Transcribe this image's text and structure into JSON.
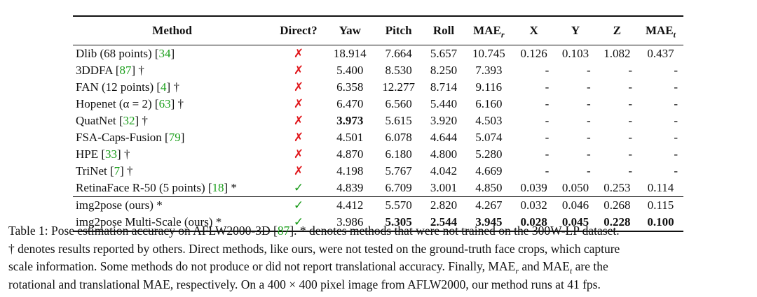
{
  "table": {
    "headers": {
      "method": "Method",
      "direct": "Direct?",
      "yaw": "Yaw",
      "pitch": "Pitch",
      "roll": "Roll",
      "mae_r": "MAE",
      "mae_r_sub": "r",
      "x": "X",
      "y": "Y",
      "z": "Z",
      "mae_t": "MAE",
      "mae_t_sub": "t"
    },
    "rows": [
      {
        "pre": "Dlib (68 points) [",
        "cite": "34",
        "post": "]",
        "direct": "✗",
        "yaw": "18.914",
        "pitch": "7.664",
        "roll": "5.657",
        "mae_r": "10.745",
        "x": "0.126",
        "y": "0.103",
        "z": "1.082",
        "mae_t": "0.437"
      },
      {
        "pre": "3DDFA [",
        "cite": "87",
        "post": "] †",
        "direct": "✗",
        "yaw": "5.400",
        "pitch": "8.530",
        "roll": "8.250",
        "mae_r": "7.393",
        "x": "-",
        "y": "-",
        "z": "-",
        "mae_t": "-"
      },
      {
        "pre": "FAN (12 points) [",
        "cite": "4",
        "post": "] †",
        "direct": "✗",
        "yaw": "6.358",
        "pitch": "12.277",
        "roll": "8.714",
        "mae_r": "9.116",
        "x": "-",
        "y": "-",
        "z": "-",
        "mae_t": "-"
      },
      {
        "pre": "Hopenet (α = 2) [",
        "cite": "63",
        "post": "] †",
        "direct": "✗",
        "yaw": "6.470",
        "pitch": "6.560",
        "roll": "5.440",
        "mae_r": "6.160",
        "x": "-",
        "y": "-",
        "z": "-",
        "mae_t": "-"
      },
      {
        "pre": "QuatNet [",
        "cite": "32",
        "post": "] †",
        "direct": "✗",
        "yaw": "3.973",
        "pitch": "5.615",
        "roll": "3.920",
        "mae_r": "4.503",
        "x": "-",
        "y": "-",
        "z": "-",
        "mae_t": "-"
      },
      {
        "pre": "FSA-Caps-Fusion [",
        "cite": "79",
        "post": "]",
        "direct": "✗",
        "yaw": "4.501",
        "pitch": "6.078",
        "roll": "4.644",
        "mae_r": "5.074",
        "x": "-",
        "y": "-",
        "z": "-",
        "mae_t": "-"
      },
      {
        "pre": "HPE [",
        "cite": "33",
        "post": "] †",
        "direct": "✗",
        "yaw": "4.870",
        "pitch": "6.180",
        "roll": "4.800",
        "mae_r": "5.280",
        "x": "-",
        "y": "-",
        "z": "-",
        "mae_t": "-"
      },
      {
        "pre": "TriNet [",
        "cite": "7",
        "post": "] †",
        "direct": "✗",
        "yaw": "4.198",
        "pitch": "5.767",
        "roll": "4.042",
        "mae_r": "4.669",
        "x": "-",
        "y": "-",
        "z": "-",
        "mae_t": "-"
      },
      {
        "pre": "RetinaFace R-50 (5 points) [",
        "cite": "18",
        "post": "] *",
        "direct": "✓",
        "yaw": "4.839",
        "pitch": "6.709",
        "roll": "3.001",
        "mae_r": "4.850",
        "x": "0.039",
        "y": "0.050",
        "z": "0.253",
        "mae_t": "0.114"
      },
      {
        "pre": "img2pose (ours) *",
        "cite": "",
        "post": "",
        "direct": "✓",
        "yaw": "4.412",
        "pitch": "5.570",
        "roll": "2.820",
        "mae_r": "4.267",
        "x": "0.032",
        "y": "0.046",
        "z": "0.268",
        "mae_t": "0.115"
      },
      {
        "pre": "img2pose Multi-Scale (ours) *",
        "cite": "",
        "post": "",
        "direct": "✓",
        "yaw": "3.986",
        "pitch": "5.305",
        "roll": "2.544",
        "mae_r": "3.945",
        "x": "0.028",
        "y": "0.045",
        "z": "0.228",
        "mae_t": "0.100"
      }
    ]
  },
  "caption": {
    "label": "Table 1:",
    "t1": " Pose estimation accuracy on AFLW2000-3D [",
    "cite": "87",
    "t2": "]. * denotes methods that were not trained on the 300W-LP dataset.",
    "t3": "† denotes results reported by others. Direct methods, like ours, were not tested on the ground-truth face crops, which capture",
    "t4": "scale information. Some methods do not produce or did not report translational accuracy. Finally, MAE",
    "sub_r": "r",
    "t5": " and MAE",
    "sub_t": "t",
    "t6": " are the",
    "t7": "rotational and translational MAE, respectively. On a 400 × 400 pixel image from AFLW2000, our method runs at 41 fps."
  }
}
